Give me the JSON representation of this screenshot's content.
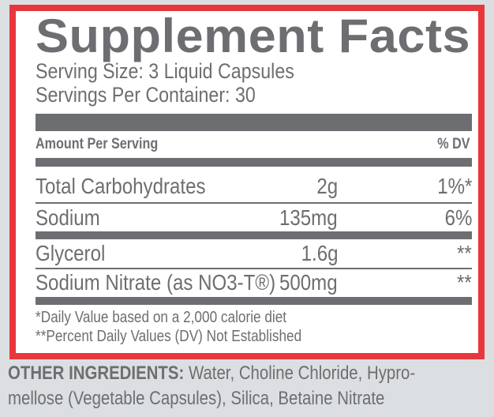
{
  "title": "Supplement Facts",
  "serving_size": "Serving Size: 3 Liquid Capsules",
  "servings_per_container": "Servings Per Container: 30",
  "header": {
    "amount": "Amount Per Serving",
    "dv": "% DV"
  },
  "rows": [
    {
      "name": "Total Carbohydrates",
      "amount": "2g",
      "dv": "1%*"
    },
    {
      "name": "Sodium",
      "amount": "135mg",
      "dv": "6%"
    },
    {
      "name": "Glycerol",
      "amount": "1.6g",
      "dv": "**"
    },
    {
      "name": "Sodium Nitrate (as NO3-T®)",
      "amount": "500mg",
      "dv": "**"
    }
  ],
  "footnotes": [
    "*Daily Value based on a 2,000 calorie diet",
    "**Percent Daily Values (DV) Not Established"
  ],
  "other_ingredients": {
    "label": "OTHER INGREDIENTS:",
    "line1": "Water, Choline Chloride, Hypro-",
    "line2": "mellose (Vegetable Capsules), Silica, Betaine Nitrate"
  },
  "colors": {
    "border": "#e8363d",
    "text": "#6d6e71",
    "background": "#dcdfe1"
  }
}
